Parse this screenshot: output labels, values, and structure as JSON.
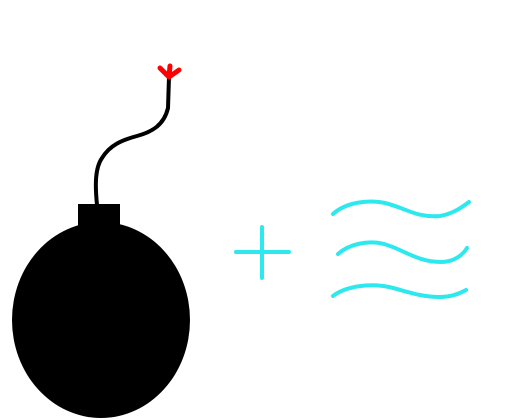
{
  "scene": {
    "items": [
      {
        "name": "bomb",
        "icon": "bomb-icon"
      },
      {
        "name": "plus",
        "icon": "plus-icon"
      },
      {
        "name": "wind",
        "icon": "wind-icon"
      }
    ]
  },
  "colors": {
    "background": "#ffffff",
    "bomb": "#000000",
    "fuse_spark": "#ff0000",
    "symbols": "#2ee8ef"
  }
}
